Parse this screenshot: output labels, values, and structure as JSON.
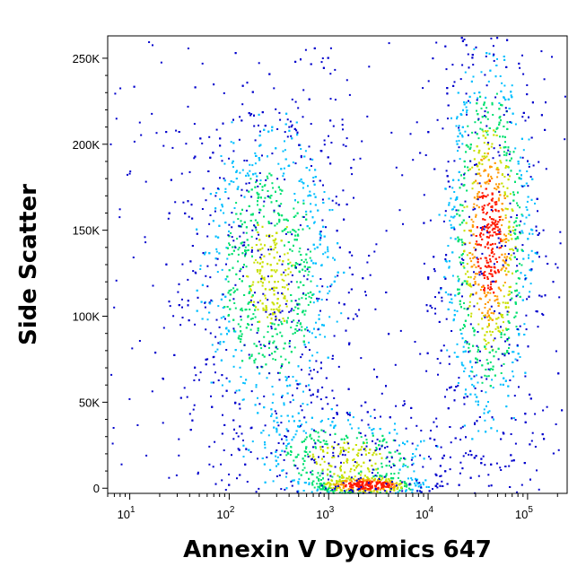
{
  "chart_data": {
    "type": "scatter",
    "subtype": "flow-cytometry density dot plot",
    "title": "",
    "xlabel": "Annexin V Dyomics 647",
    "ylabel": "Side Scatter",
    "x_scale": "log",
    "xlim": [
      6,
      250000
    ],
    "ylim": [
      -3000,
      263000
    ],
    "x_ticks": [
      {
        "value": 10,
        "base": "10",
        "exp": "1"
      },
      {
        "value": 100,
        "base": "10",
        "exp": "2"
      },
      {
        "value": 1000,
        "base": "10",
        "exp": "3"
      },
      {
        "value": 10000,
        "base": "10",
        "exp": "4"
      },
      {
        "value": 100000,
        "base": "10",
        "exp": "5"
      }
    ],
    "y_ticks": [
      {
        "value": 0,
        "label": "0"
      },
      {
        "value": 50000,
        "label": "50K"
      },
      {
        "value": 100000,
        "label": "100K"
      },
      {
        "value": 150000,
        "label": "150K"
      },
      {
        "value": 200000,
        "label": "200K"
      },
      {
        "value": 250000,
        "label": "250K"
      }
    ],
    "color_scale": [
      "#0000cc",
      "#00bfff",
      "#00e070",
      "#c8e000",
      "#ff9900",
      "#ff1a00"
    ],
    "grid": false,
    "legend": "none",
    "populations": [
      {
        "x_center": 250,
        "y_center": 125000,
        "x_log_spread": 0.35,
        "y_spread": 45000,
        "peak_density": 0.55
      },
      {
        "x_center": 40000,
        "y_center": 145000,
        "x_log_spread": 0.2,
        "y_spread": 50000,
        "peak_density": 1.0
      },
      {
        "x_center": 1500,
        "y_center": 18000,
        "x_log_spread": 0.45,
        "y_spread": 12000,
        "peak_density": 0.6
      },
      {
        "x_center": 2500,
        "y_center": 2000,
        "x_log_spread": 0.25,
        "y_spread": 2500,
        "peak_density": 1.0
      }
    ]
  }
}
